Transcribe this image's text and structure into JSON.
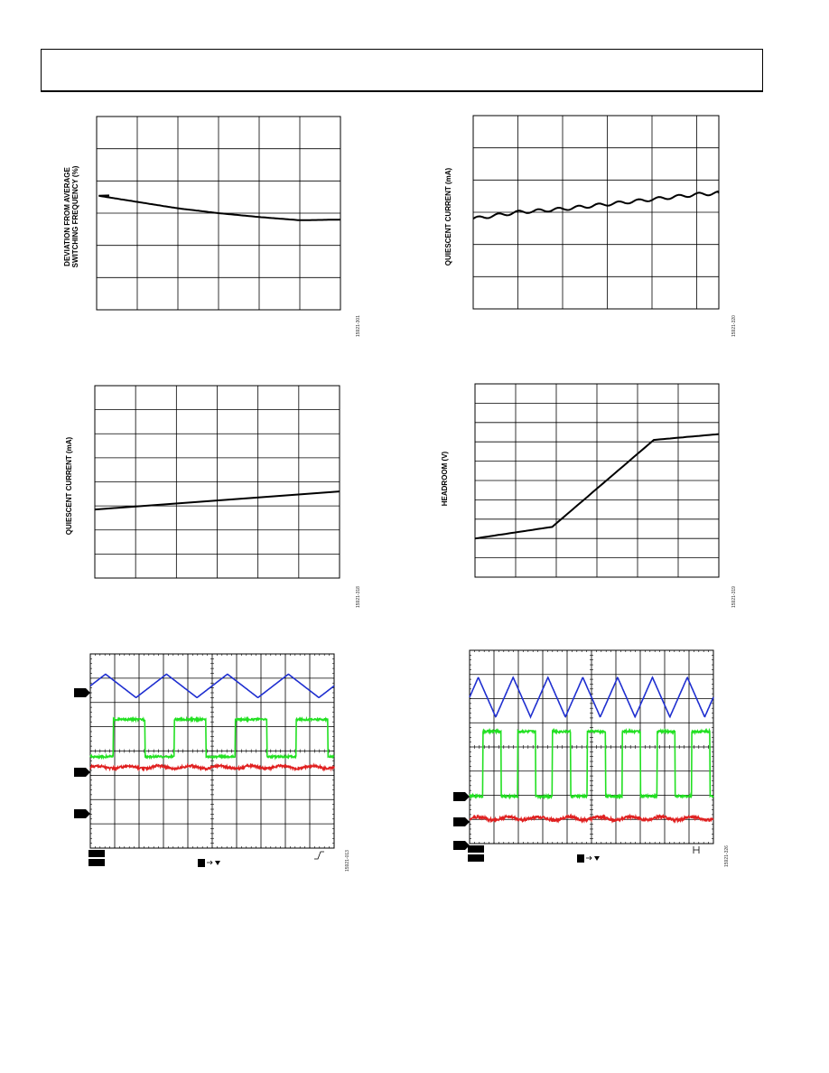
{
  "header": {
    "text": ""
  },
  "figures": [
    {
      "id": "fig1",
      "ylabel": "DEVIATION FROM AVERAGE\nSWITCHING FREQUENCY (%)",
      "figure_id": "15921-301"
    },
    {
      "id": "fig2",
      "ylabel": "QUIESCENT CURRENT (mA)",
      "figure_id": "15921-320"
    },
    {
      "id": "fig3",
      "ylabel": "QUIESCENT CURRENT (mA)",
      "figure_id": "15921-318"
    },
    {
      "id": "fig4",
      "ylabel": "HEADROOM (V)",
      "figure_id": "15921-319"
    },
    {
      "id": "fig5",
      "ylabel": "",
      "figure_id": "15921-013"
    },
    {
      "id": "fig6",
      "ylabel": "",
      "figure_id": "15921-326"
    }
  ],
  "chart_data": [
    {
      "type": "line",
      "grid": true,
      "x": [
        0,
        1,
        2,
        3,
        4,
        5,
        6
      ],
      "series": [
        {
          "color": "#000000",
          "values": [
            3.55,
            3.35,
            3.15,
            3.0,
            2.88,
            2.78,
            2.8
          ]
        }
      ],
      "xlim": [
        0,
        6
      ],
      "ylim": [
        0,
        6
      ]
    },
    {
      "type": "line",
      "grid": true,
      "x": [
        0,
        1,
        2,
        3,
        4,
        5,
        5.5
      ],
      "series": [
        {
          "color": "#000000",
          "values": [
            2.8,
            3.0,
            3.1,
            3.25,
            3.4,
            3.55,
            3.6
          ]
        }
      ],
      "xlim": [
        0,
        5.5
      ],
      "ylim": [
        0,
        6
      ]
    },
    {
      "type": "line",
      "grid": true,
      "x": [
        0,
        6
      ],
      "series": [
        {
          "color": "#000000",
          "values": [
            2.85,
            3.6
          ]
        }
      ],
      "xlim": [
        0,
        6
      ],
      "ylim": [
        0,
        8
      ]
    },
    {
      "type": "line",
      "grid": true,
      "x": [
        0,
        1.9,
        4.4,
        6
      ],
      "series": [
        {
          "color": "#000000",
          "values": [
            2.0,
            2.6,
            7.1,
            7.4
          ]
        }
      ],
      "xlim": [
        0,
        6
      ],
      "ylim": [
        0,
        10
      ]
    },
    {
      "type": "line",
      "grid": true,
      "series": [
        {
          "color": "#1f2fd0",
          "shape": "triangle",
          "cycles": 4,
          "high": 6.75,
          "low": 5.3
        },
        {
          "color": "#22e022",
          "shape": "square",
          "cycles": 4,
          "high": 3.95,
          "low": 1.65
        },
        {
          "color": "#e02020",
          "shape": "ripple",
          "level": 1.0
        }
      ],
      "xlim": [
        0,
        10
      ],
      "ylim": [
        -4,
        8
      ]
    },
    {
      "type": "line",
      "grid": true,
      "series": [
        {
          "color": "#1f2fd0",
          "shape": "triangle",
          "cycles": 7,
          "high": 6.6,
          "low": 4.55
        },
        {
          "color": "#22e022",
          "shape": "square",
          "cycles": 7,
          "high": 3.8,
          "low": 0.45
        },
        {
          "color": "#e02020",
          "shape": "ripple",
          "level": -0.7
        }
      ],
      "xlim": [
        0,
        10
      ],
      "ylim": [
        -2,
        8
      ]
    }
  ]
}
